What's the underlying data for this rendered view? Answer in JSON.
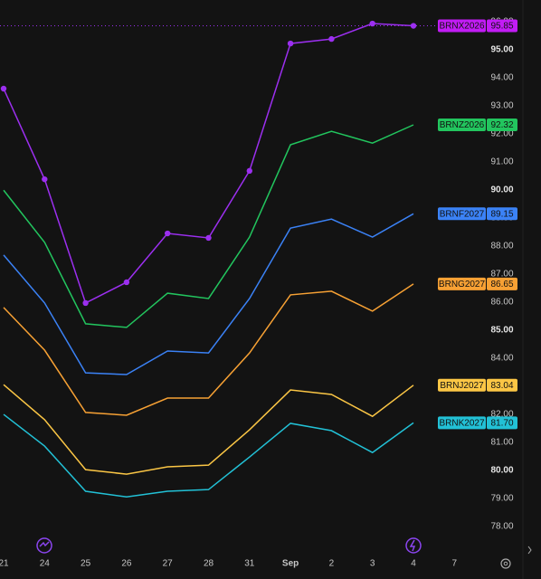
{
  "chart_data": {
    "type": "line",
    "categories": [
      "21",
      "24",
      "25",
      "26",
      "27",
      "28",
      "31",
      "Sep",
      "2",
      "3",
      "4",
      "7"
    ],
    "series": [
      {
        "name": "BRNX2026",
        "color": "#9c2ff0",
        "label_color": "#c21cf5",
        "markers": true,
        "price_line": true,
        "values": [
          93.61,
          90.38,
          85.97,
          86.71,
          88.45,
          88.29,
          90.68,
          95.22,
          95.38,
          95.93,
          95.85,
          null
        ],
        "value_labels": [
          null,
          null,
          null,
          null,
          null,
          null,
          null,
          null,
          null,
          null,
          "95.85",
          null
        ]
      },
      {
        "name": "BRNZ2026",
        "color": "#22c55e",
        "label_color": "#22c55e",
        "values": [
          89.99,
          88.13,
          85.23,
          85.1,
          86.32,
          86.13,
          88.32,
          91.61,
          92.09,
          91.67,
          92.32,
          null
        ],
        "value_labels": [
          null,
          null,
          null,
          null,
          null,
          null,
          null,
          null,
          null,
          null,
          "92.32",
          null
        ]
      },
      {
        "name": "BRNF2027",
        "color": "#3b82f6",
        "label_color": "#3b82f6",
        "values": [
          87.68,
          85.97,
          83.48,
          83.42,
          84.26,
          84.19,
          86.13,
          88.64,
          88.96,
          88.32,
          89.15,
          null
        ],
        "value_labels": [
          null,
          null,
          null,
          null,
          null,
          null,
          null,
          null,
          null,
          null,
          "89.15",
          null
        ]
      },
      {
        "name": "BRNG2027",
        "color": "#f7a134",
        "label_color": "#f7a134",
        "values": [
          85.81,
          84.29,
          82.07,
          81.97,
          82.58,
          82.58,
          84.19,
          86.26,
          86.39,
          85.68,
          86.65,
          null
        ],
        "value_labels": [
          null,
          null,
          null,
          null,
          null,
          null,
          null,
          null,
          null,
          null,
          "86.65",
          null
        ]
      },
      {
        "name": "BRNJ2027",
        "color": "#fbc645",
        "label_color": "#fbc645",
        "values": [
          83.06,
          81.81,
          80.03,
          79.87,
          80.13,
          80.19,
          81.45,
          82.87,
          82.71,
          81.93,
          83.04,
          null
        ],
        "value_labels": [
          null,
          null,
          null,
          null,
          null,
          null,
          null,
          null,
          null,
          null,
          "83.04",
          null
        ]
      },
      {
        "name": "BRNK2027",
        "color": "#22c1d6",
        "label_color": "#22c1d6",
        "values": [
          82.0,
          80.87,
          79.26,
          79.06,
          79.26,
          79.32,
          80.48,
          81.68,
          81.42,
          80.64,
          81.7,
          null
        ],
        "value_labels": [
          null,
          null,
          null,
          null,
          null,
          null,
          null,
          null,
          null,
          null,
          "81.70",
          null
        ]
      }
    ],
    "ylim": [
      77.1,
      96.77
    ],
    "yticks": [
      {
        "value": 78,
        "label": "78.00"
      },
      {
        "value": 79,
        "label": "79.00"
      },
      {
        "value": 80,
        "label": "80.00"
      },
      {
        "value": 81,
        "label": "81.00"
      },
      {
        "value": 82,
        "label": "82.00"
      },
      {
        "value": 83,
        "label": "83.00"
      },
      {
        "value": 84,
        "label": "84.00"
      },
      {
        "value": 85,
        "label": "85.00"
      },
      {
        "value": 86,
        "label": "86.00"
      },
      {
        "value": 87,
        "label": "87.00"
      },
      {
        "value": 88,
        "label": "88.00"
      },
      {
        "value": 89,
        "label": "89.00"
      },
      {
        "value": 90,
        "label": "90.00"
      },
      {
        "value": 91,
        "label": "91.00"
      },
      {
        "value": 92,
        "label": "92.00"
      },
      {
        "value": 93,
        "label": "93.00"
      },
      {
        "value": 94,
        "label": "94.00"
      },
      {
        "value": 95,
        "label": "95.00"
      },
      {
        "value": 96,
        "label": "96.00"
      }
    ],
    "grid": false
  }
}
